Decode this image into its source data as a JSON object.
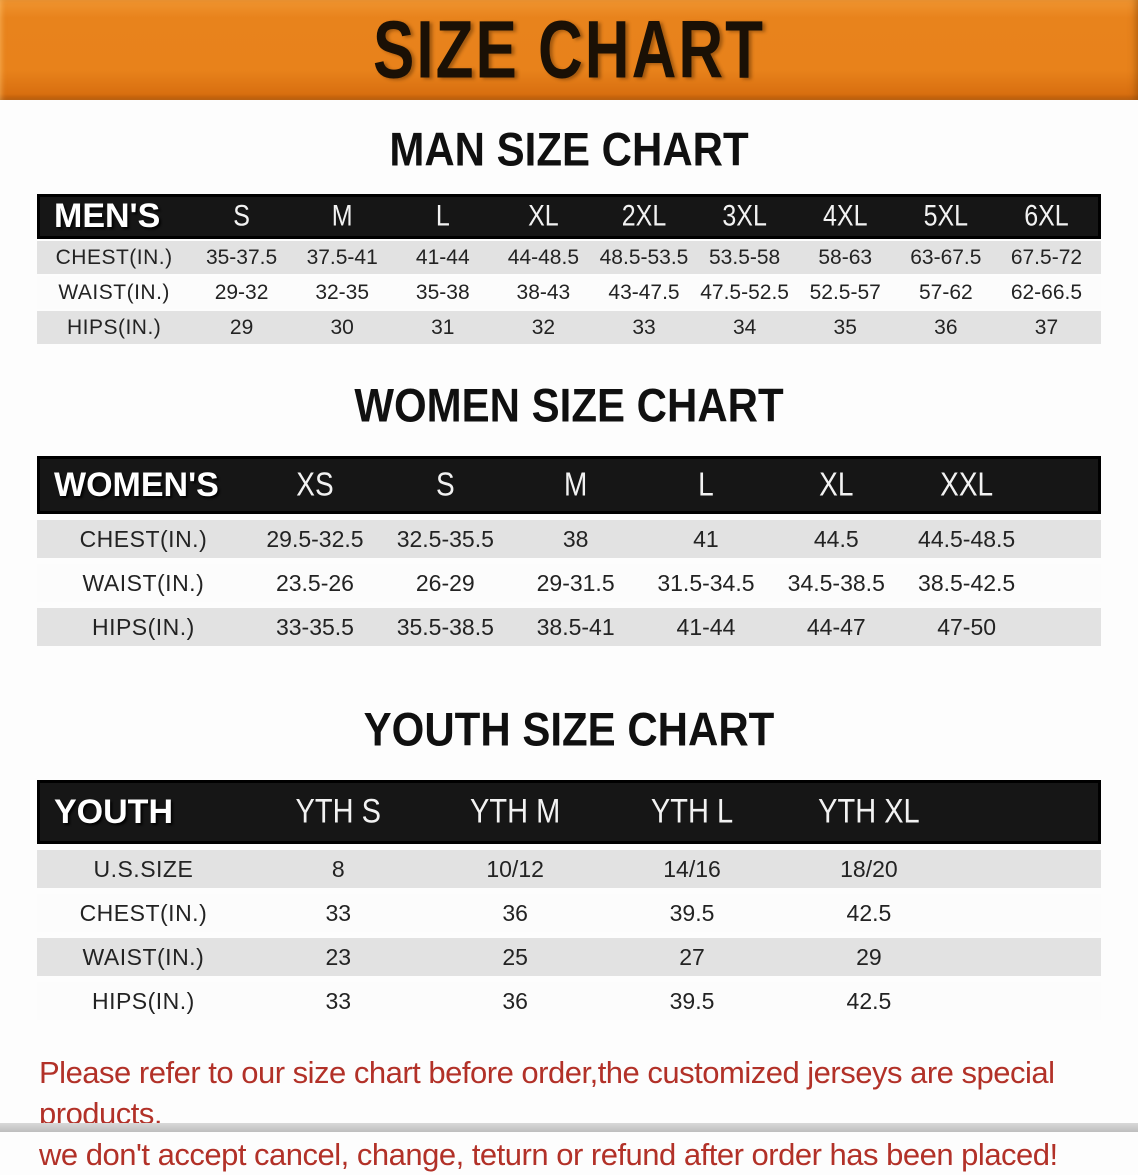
{
  "banner": {
    "title": "SIZE CHART",
    "bg_color": "#E8821B",
    "text_color": "#1A1005"
  },
  "sections": [
    {
      "heading": "MAN SIZE CHART",
      "table": {
        "header_label": "MEN'S",
        "columns": [
          "S",
          "M",
          "L",
          "XL",
          "2XL",
          "3XL",
          "4XL",
          "5XL",
          "6XL"
        ],
        "rows": [
          {
            "label": "CHEST(IN.)",
            "values": [
              "35-37.5",
              "37.5-41",
              "41-44",
              "44-48.5",
              "48.5-53.5",
              "53.5-58",
              "58-63",
              "63-67.5",
              "67.5-72"
            ]
          },
          {
            "label": "WAIST(IN.)",
            "values": [
              "29-32",
              "32-35",
              "35-38",
              "38-43",
              "43-47.5",
              "47.5-52.5",
              "52.5-57",
              "57-62",
              "62-66.5"
            ]
          },
          {
            "label": "HIPS(IN.)",
            "values": [
              "29",
              "30",
              "31",
              "32",
              "33",
              "34",
              "35",
              "36",
              "37"
            ]
          }
        ]
      }
    },
    {
      "heading": "WOMEN SIZE CHART",
      "table": {
        "header_label": "WOMEN'S",
        "columns": [
          "XS",
          "S",
          "M",
          "L",
          "XL",
          "XXL"
        ],
        "rows": [
          {
            "label": "CHEST(IN.)",
            "values": [
              "29.5-32.5",
              "32.5-35.5",
              "38",
              "41",
              "44.5",
              "44.5-48.5"
            ]
          },
          {
            "label": "WAIST(IN.)",
            "values": [
              "23.5-26",
              "26-29",
              "29-31.5",
              "31.5-34.5",
              "34.5-38.5",
              "38.5-42.5"
            ]
          },
          {
            "label": "HIPS(IN.)",
            "values": [
              "33-35.5",
              "35.5-38.5",
              "38.5-41",
              "41-44",
              "44-47",
              "47-50"
            ]
          }
        ]
      }
    },
    {
      "heading": "YOUTH SIZE CHART",
      "table": {
        "header_label": "YOUTH",
        "columns": [
          "YTH S",
          "YTH M",
          "YTH L",
          "YTH XL"
        ],
        "rows": [
          {
            "label": "U.S.SIZE",
            "values": [
              "8",
              "10/12",
              "14/16",
              "18/20"
            ]
          },
          {
            "label": "CHEST(IN.)",
            "values": [
              "33",
              "36",
              "39.5",
              "42.5"
            ]
          },
          {
            "label": "WAIST(IN.)",
            "values": [
              "23",
              "25",
              "27",
              "29"
            ]
          },
          {
            "label": "HIPS(IN.)",
            "values": [
              "33",
              "36",
              "39.5",
              "42.5"
            ]
          }
        ]
      }
    }
  ],
  "disclaimer": {
    "text_color": "#B23128",
    "lines": [
      "Please refer to our size chart before order,the customized jerseys are special products,",
      "we don't accept cancel, change, teturn or refund after order has been placed!"
    ]
  },
  "table_colors": {
    "header_bg": "#161616",
    "header_text": "#FFFFFF",
    "row_gray": "#E2E2E2",
    "row_white": "#FCFCFC"
  }
}
